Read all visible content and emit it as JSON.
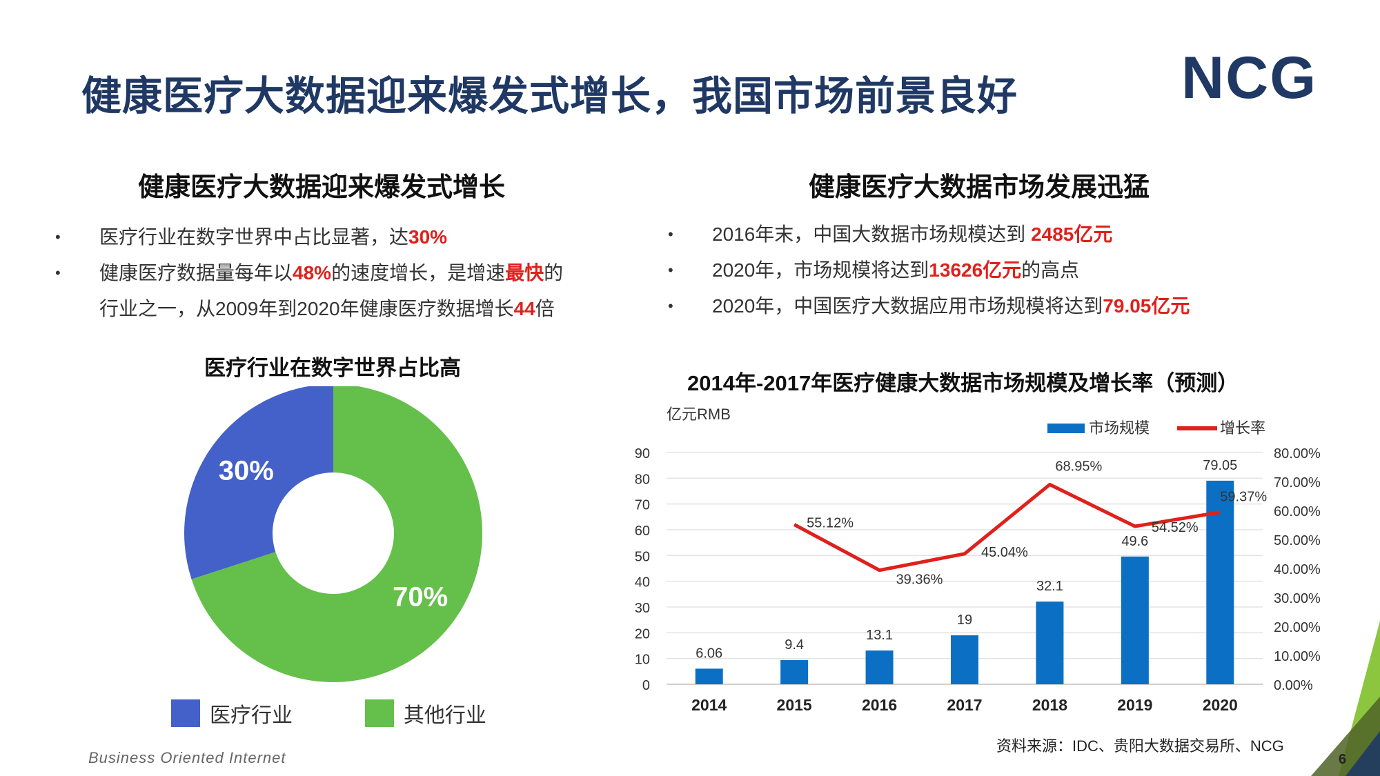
{
  "header": {
    "title": "健康医疗大数据迎来爆发式增长，我国市场前景良好",
    "logo": "NCG"
  },
  "left": {
    "heading": "健康医疗大数据迎来爆发式增长",
    "bullets": [
      {
        "text": "医疗行业在数字世界中占比显著，达",
        "hl": "30%"
      },
      {
        "t1": "健康医疗数据量每年以",
        "h1": "48%",
        "t2": "的速度增长，是增速",
        "h2": "最快",
        "t3": "的"
      },
      {
        "t1": "行业之一，从2009年到2020年健康医疗数据增长",
        "h1": "44",
        "t2": "倍"
      }
    ]
  },
  "right": {
    "heading": "健康医疗大数据市场发展迅猛",
    "bullets": [
      {
        "text": "2016年末，中国大数据市场规模达到 ",
        "hl": "2485亿元"
      },
      {
        "text": "2020年，市场规模将达到",
        "hl": "13626亿元",
        "after": "的高点"
      },
      {
        "text": "2020年，中国医疗大数据应用市场规模将达到",
        "hl": "79.05亿元"
      }
    ]
  },
  "bullet_symbol": "•",
  "chart_data": [
    {
      "type": "pie",
      "title": "医疗行业在数字世界占比高",
      "labels": [
        "医疗行业",
        "其他行业"
      ],
      "values": [
        30,
        70
      ],
      "value_labels": [
        "30%",
        "70%"
      ],
      "colors": [
        "#4460c9",
        "#64c04a"
      ],
      "donut": true,
      "legend": "bottom"
    },
    {
      "type": "bar",
      "title": "2014年-2017年医疗健康大数据市场规模及增长率（预测）",
      "ylabel": "亿元RMB",
      "categories": [
        "2014",
        "2015",
        "2016",
        "2017",
        "2018",
        "2019",
        "2020"
      ],
      "series": [
        {
          "name": "市场规模",
          "type": "bar",
          "color": "#0b70c4",
          "values": [
            6.06,
            9.4,
            13.1,
            19,
            32.1,
            49.6,
            79.05
          ],
          "labels": [
            "6.06",
            "9.4",
            "13.1",
            "19",
            "32.1",
            "49.6",
            "79.05"
          ]
        },
        {
          "name": "增长率",
          "type": "line",
          "color": "#e0201b",
          "values": [
            null,
            55.12,
            39.36,
            45.04,
            68.95,
            54.52,
            59.37
          ],
          "labels": [
            "",
            "55.12%",
            "39.36%",
            "45.04%",
            "68.95%",
            "54.52%",
            "59.37%"
          ]
        }
      ],
      "ylim": [
        0,
        90
      ],
      "y_ticks": [
        "0",
        "10",
        "20",
        "30",
        "40",
        "50",
        "60",
        "70",
        "80",
        "90"
      ],
      "y2lim": [
        0,
        80
      ],
      "y2_ticks": [
        "0.00%",
        "10.00%",
        "20.00%",
        "30.00%",
        "40.00%",
        "50.00%",
        "60.00%",
        "70.00%",
        "80.00%"
      ],
      "grid": true,
      "legend": "top-right"
    }
  ],
  "footer": {
    "tagline": "Business Oriented Internet",
    "source": "资料来源：IDC、贵阳大数据交易所、NCG",
    "page": "6"
  },
  "colors": {
    "title": "#1f3864",
    "highlight": "#e0201b",
    "accent_green": "#8cc63f"
  }
}
